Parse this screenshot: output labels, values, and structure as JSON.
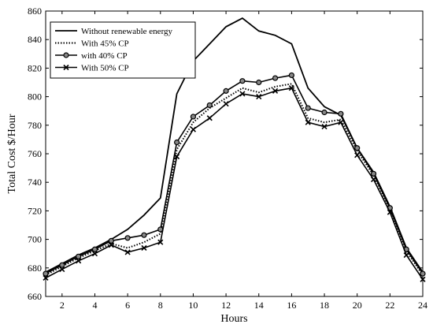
{
  "chart_data": {
    "type": "line",
    "title": "",
    "xlabel": "Hours",
    "ylabel": "Total Cost $/Hour",
    "xlim": [
      1,
      24
    ],
    "ylim": [
      660,
      860
    ],
    "xticks": [
      2,
      4,
      6,
      8,
      10,
      12,
      14,
      16,
      18,
      20,
      22,
      24
    ],
    "yticks": [
      660,
      680,
      700,
      720,
      740,
      760,
      780,
      800,
      820,
      840,
      860
    ],
    "grid": false,
    "legend_position": "top-left",
    "x": [
      1,
      2,
      3,
      4,
      5,
      6,
      7,
      8,
      9,
      10,
      11,
      12,
      13,
      14,
      15,
      16,
      17,
      18,
      19,
      20,
      21,
      22,
      23,
      24
    ],
    "series": [
      {
        "name": "Without renewable energy",
        "line_style": "solid",
        "marker": "none",
        "values": [
          677,
          683,
          689,
          694,
          700,
          707,
          717,
          729,
          802,
          825,
          837,
          849,
          855,
          846,
          843,
          837,
          806,
          793,
          787,
          764,
          747,
          723,
          694,
          677
        ]
      },
      {
        "name": "With 45% CP",
        "line_style": "dotted",
        "marker": "none",
        "values": [
          675,
          681,
          687,
          692,
          697,
          694,
          698,
          704,
          763,
          782,
          792,
          799,
          806,
          803,
          807,
          809,
          785,
          782,
          784,
          762,
          745,
          721,
          692,
          675
        ]
      },
      {
        "name": "with 40% CP",
        "line_style": "solid",
        "marker": "circle",
        "values": [
          676,
          682,
          688,
          693,
          699,
          701,
          703,
          707,
          768,
          786,
          794,
          804,
          811,
          810,
          813,
          815,
          792,
          789,
          788,
          764,
          746,
          722,
          693,
          676
        ]
      },
      {
        "name": "With 50% CP",
        "line_style": "solid",
        "marker": "x",
        "values": [
          673,
          679,
          685,
          690,
          696,
          691,
          694,
          698,
          758,
          777,
          785,
          795,
          802,
          800,
          804,
          806,
          782,
          779,
          782,
          759,
          742,
          719,
          689,
          672
        ]
      }
    ]
  }
}
